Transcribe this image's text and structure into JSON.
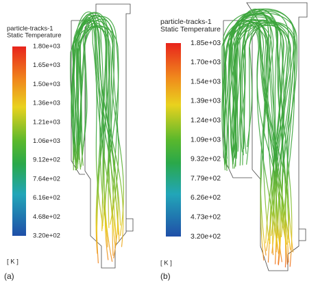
{
  "panels": [
    {
      "legend_title": "particle-tracks-1",
      "legend_subtitle": "Static Temperature",
      "colorbar_labels": [
        "1.80e+03",
        "1.65e+03",
        "1.50e+03",
        "1.36e+03",
        "1.21e+03",
        "1.06e+03",
        "9.12e+02",
        "7.64e+02",
        "6.16e+02",
        "4.68e+02",
        "3.20e+02"
      ],
      "unit": "[ K ]",
      "caption": "(a)"
    },
    {
      "legend_title": "particle-tracks-1",
      "legend_subtitle": "Static Temperature",
      "colorbar_labels": [
        "1.85e+03",
        "1.70e+03",
        "1.54e+03",
        "1.39e+03",
        "1.24e+03",
        "1.09e+03",
        "9.32e+02",
        "7.79e+02",
        "6.26e+02",
        "4.73e+02",
        "3.20e+02"
      ],
      "unit": "[ K ]",
      "caption": "(b)"
    }
  ]
}
